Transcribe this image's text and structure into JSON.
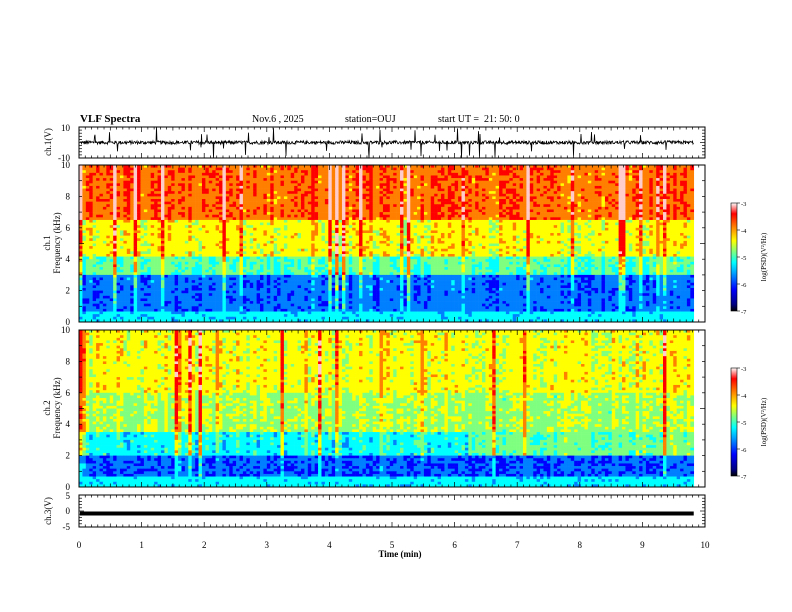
{
  "header": {
    "title": "VLF Spectra",
    "date": "Nov.6 , 2025",
    "station": "station=OUJ",
    "start_ut": "start UT =  21: 50: 0"
  },
  "chart_data": [
    {
      "type": "line",
      "id": "ch1-waveform",
      "ylabel": "ch.1(V)",
      "ylim": [
        -10,
        10
      ],
      "y_tick_labels": [
        "10",
        "-10"
      ],
      "xlim": [
        0,
        10
      ],
      "baseline_value": 0,
      "description_level": "dense waveform, mostly within about ±2 V with spikes to about ±10 V"
    },
    {
      "type": "heatmap",
      "id": "ch1-spectrogram",
      "ylabel_line1": "ch.1",
      "ylabel_line2": "Frequency (kHz)",
      "ylim": [
        0,
        10
      ],
      "y_tick_labels": [
        "0",
        "2",
        "4",
        "6",
        "8",
        "10"
      ],
      "xlim": [
        0,
        9.8
      ],
      "colorbar": {
        "label": "log(PSD)(V²/Hz)",
        "range": [
          -7,
          -3
        ],
        "tick_labels": [
          "-3",
          "-4",
          "-5",
          "-6",
          "-7"
        ]
      }
    },
    {
      "type": "heatmap",
      "id": "ch2-spectrogram",
      "ylabel_line1": "ch.2",
      "ylabel_line2": "Frequency (kHz)",
      "ylim": [
        0,
        10
      ],
      "y_tick_labels": [
        "0",
        "2",
        "4",
        "6",
        "8",
        "10"
      ],
      "xlim": [
        0,
        9.8
      ],
      "colorbar": {
        "label": "log(PSD)(V²/Hz)",
        "range": [
          -7,
          -3
        ],
        "tick_labels": [
          "-3",
          "-4",
          "-5",
          "-6",
          "-7"
        ]
      }
    },
    {
      "type": "line",
      "id": "ch3-waveform",
      "ylabel": "ch.3(V)",
      "ylim": [
        -5,
        5
      ],
      "y_tick_labels": [
        "5",
        "0",
        "-5"
      ],
      "xlim": [
        0,
        10
      ],
      "baseline_value": -0.8
    }
  ],
  "xaxis": {
    "label": "Time (min)",
    "ticks": [
      0,
      1,
      2,
      3,
      4,
      5,
      6,
      7,
      8,
      9,
      10
    ],
    "tick_labels": [
      "0",
      "1",
      "2",
      "3",
      "4",
      "5",
      "6",
      "7",
      "8",
      "9",
      "10"
    ]
  },
  "colors": {
    "jet": [
      "#00007f",
      "#0000ff",
      "#007fff",
      "#00ffff",
      "#7fff7f",
      "#ffff00",
      "#ff7f00",
      "#ff0000",
      "#ffcccc"
    ]
  }
}
